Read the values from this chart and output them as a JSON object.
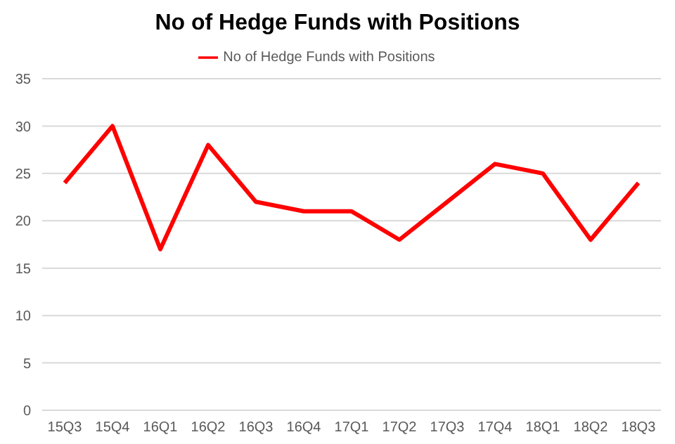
{
  "chart_data": {
    "type": "line",
    "title": "No of Hedge Funds with Positions",
    "categories": [
      "15Q3",
      "15Q4",
      "16Q1",
      "16Q2",
      "16Q3",
      "16Q4",
      "17Q1",
      "17Q2",
      "17Q3",
      "17Q4",
      "18Q1",
      "18Q2",
      "18Q3"
    ],
    "series": [
      {
        "name": "No of Hedge Funds with Positions",
        "color": "#ff0000",
        "values": [
          24,
          30,
          17,
          28,
          22,
          21,
          21,
          18,
          22,
          26,
          25,
          18,
          24
        ]
      }
    ],
    "ylim": [
      0,
      35
    ],
    "yticks": [
      0,
      5,
      10,
      15,
      20,
      25,
      30,
      35
    ],
    "grid": "y",
    "legend": "top",
    "marker": "none",
    "line_style": "solid"
  }
}
